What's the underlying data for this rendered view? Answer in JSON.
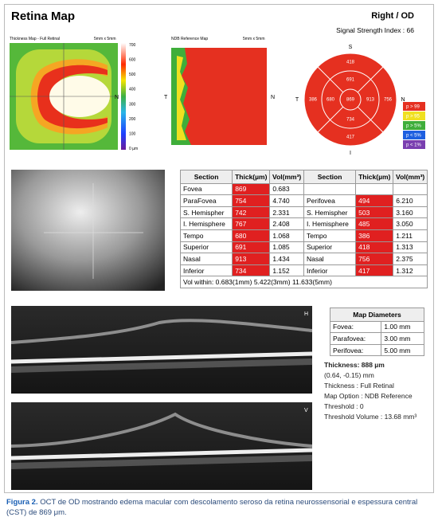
{
  "header": {
    "title": "Retina Map",
    "eye": "Right / OD",
    "signal": "Signal Strength Index : 66"
  },
  "thickness_map": {
    "title": "Thickness Map - Full Retinal",
    "size": "5mm x 5mm",
    "scale_labels": [
      "700",
      "600",
      "500",
      "400",
      "300",
      "200",
      "100",
      "0 µm"
    ],
    "right": "N"
  },
  "ndb_map": {
    "title": "NDB Reference Map",
    "size": "5mm x 5mm",
    "left": "T",
    "right": "N"
  },
  "sector_map": {
    "top": "S",
    "left": "T",
    "right": "N",
    "bottom": "I",
    "center": "869",
    "inner": {
      "superior": "691",
      "tempo": "680",
      "nasal": "913",
      "inferior": "734"
    },
    "outer": {
      "superior": "418",
      "tempo": "386",
      "nasal": "756",
      "inferior": "417"
    },
    "legend": [
      "p > 99",
      "p > 95",
      "p > 5%",
      "p < 5%",
      "p < 1%"
    ]
  },
  "table": {
    "headers": [
      "Section",
      "Thick(µm)",
      "Vol(mm³)",
      "Section",
      "Thick(µm)",
      "Vol(mm³)"
    ],
    "left_rows": [
      [
        "Fovea",
        "869",
        "0.683"
      ],
      [
        "ParaFovea",
        "754",
        "4.740"
      ],
      [
        "S. Hemispher",
        "742",
        "2.331"
      ],
      [
        "I. Hemisphere",
        "767",
        "2.408"
      ],
      [
        "Tempo",
        "680",
        "1.068"
      ],
      [
        "Superior",
        "691",
        "1.085"
      ],
      [
        "Nasal",
        "913",
        "1.434"
      ],
      [
        "Inferior",
        "734",
        "1.152"
      ]
    ],
    "right_rows": [
      [
        "Perifovea",
        "494",
        "6.210"
      ],
      [
        "S. Hemispher",
        "503",
        "3.160"
      ],
      [
        "I. Hemisphere",
        "485",
        "3.050"
      ],
      [
        "Tempo",
        "386",
        "1.211"
      ],
      [
        "Superior",
        "418",
        "1.313"
      ],
      [
        "Nasal",
        "756",
        "2.375"
      ],
      [
        "Inferior",
        "417",
        "1.312"
      ]
    ],
    "footer": "Vol within: 0.683(1mm) 5.422(3mm) 11.633(5mm)"
  },
  "map_diameters": {
    "title": "Map Diameters",
    "rows": [
      [
        "Fovea:",
        "1.00 mm"
      ],
      [
        "Parafovea:",
        "3.00 mm"
      ],
      [
        "Perifovea:",
        "5.00 mm"
      ]
    ]
  },
  "scan_labels": [
    "H",
    "V"
  ],
  "info": [
    "Thickness: 888 µm",
    "(0.64, -0.15) mm",
    "Thickness : Full Retinal",
    "Map Option : NDB Reference",
    "Threshold : 0",
    "Threshold Volume : 13.68 mm³"
  ],
  "caption": {
    "label": "Figura 2.",
    "text": "OCT de OD mostrando edema macular com descolamento seroso da retina neurossensorial e espessura central (CST) de 869 μm."
  }
}
